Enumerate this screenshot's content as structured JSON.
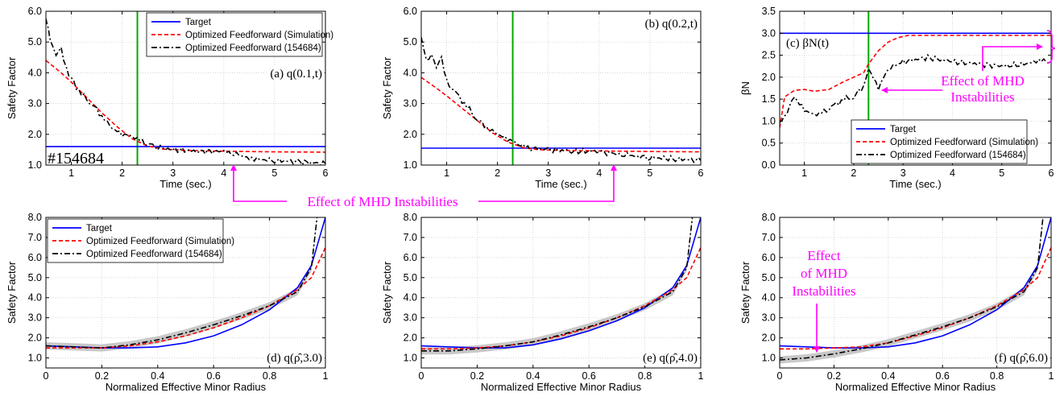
{
  "figure": {
    "shot_label": "#154684",
    "mhd_annotation": "Effect of MHD Instabilities",
    "mhd_annotation_c": [
      "Effect of MHD",
      "Instabilities"
    ],
    "mhd_annotation_f": [
      "Effect",
      "of MHD",
      "Instabilities"
    ],
    "colors": {
      "target": "#0000ff",
      "simulation": "#ff0000",
      "experiment": "#000000",
      "event_line": "#00aa00",
      "annotation": "#ff00ff",
      "uncertainty": "#b0b0b0"
    },
    "legend": {
      "target": "Target",
      "simulation": "Optimized Feedforward (Simulation)",
      "experiment": "Optimized Feedforward (154684)"
    }
  },
  "chart_data": [
    {
      "id": "a",
      "type": "line",
      "title": "(a) q(0.1,t)",
      "xlabel": "Time (sec.)",
      "ylabel": "Safety Factor",
      "xlim": [
        0.5,
        6
      ],
      "ylim": [
        1,
        6
      ],
      "xticks": [
        1,
        2,
        3,
        4,
        5,
        6
      ],
      "yticks": [
        1.0,
        2.0,
        3.0,
        4.0,
        5.0,
        6.0
      ],
      "ytick_labels": [
        "1.0",
        "2.0",
        "3.0",
        "4.0",
        "5.0",
        "6.0"
      ],
      "grid": true,
      "legend": "top-right",
      "vline_x": 2.3,
      "series": [
        {
          "name": "Target",
          "x": [
            0.5,
            6
          ],
          "y": [
            1.6,
            1.6
          ]
        },
        {
          "name": "Optimized Feedforward (Simulation)",
          "x": [
            0.5,
            0.8,
            1.0,
            1.3,
            1.6,
            1.9,
            2.2,
            2.5,
            2.8,
            3.2,
            4.0,
            5.0,
            6.0
          ],
          "y": [
            4.4,
            4.0,
            3.7,
            3.2,
            2.7,
            2.25,
            1.85,
            1.62,
            1.52,
            1.48,
            1.45,
            1.43,
            1.42
          ]
        },
        {
          "name": "Optimized Feedforward (154684)",
          "x": [
            0.5,
            0.55,
            0.6,
            0.7,
            0.8,
            0.9,
            1.0,
            1.2,
            1.4,
            1.6,
            1.8,
            2.0,
            2.2,
            2.4,
            2.6,
            3.0,
            3.5,
            4.0,
            4.3,
            4.6,
            5.0,
            5.5,
            6.0
          ],
          "y": [
            5.8,
            5.4,
            5.0,
            4.6,
            4.8,
            4.1,
            3.8,
            3.3,
            3.0,
            2.6,
            2.2,
            2.0,
            1.95,
            1.75,
            1.6,
            1.5,
            1.45,
            1.45,
            1.3,
            1.2,
            1.15,
            1.1,
            1.05
          ]
        }
      ]
    },
    {
      "id": "b",
      "type": "line",
      "title": "(b) q(0.2,t)",
      "xlabel": "Time (sec.)",
      "ylabel": "Safety Factor",
      "xlim": [
        0.5,
        6
      ],
      "ylim": [
        1,
        6
      ],
      "xticks": [
        1,
        2,
        3,
        4,
        5,
        6
      ],
      "yticks": [
        1.0,
        2.0,
        3.0,
        4.0,
        5.0,
        6.0
      ],
      "ytick_labels": [
        "1.0",
        "2.0",
        "3.0",
        "4.0",
        "5.0",
        "6.0"
      ],
      "grid": true,
      "vline_x": 2.3,
      "series": [
        {
          "name": "Target",
          "x": [
            0.5,
            6
          ],
          "y": [
            1.55,
            1.55
          ]
        },
        {
          "name": "Optimized Feedforward (Simulation)",
          "x": [
            0.5,
            0.8,
            1.0,
            1.3,
            1.6,
            1.9,
            2.2,
            2.5,
            2.8,
            3.2,
            4.0,
            5.0,
            6.0
          ],
          "y": [
            3.85,
            3.5,
            3.25,
            2.85,
            2.45,
            2.05,
            1.75,
            1.57,
            1.5,
            1.48,
            1.46,
            1.44,
            1.43
          ]
        },
        {
          "name": "Optimized Feedforward (154684)",
          "x": [
            0.5,
            0.6,
            0.7,
            0.8,
            0.9,
            1.0,
            1.2,
            1.4,
            1.6,
            1.8,
            2.0,
            2.2,
            2.4,
            2.6,
            3.0,
            3.5,
            4.0,
            4.3,
            4.6,
            5.0,
            5.5,
            6.0
          ],
          "y": [
            5.2,
            4.4,
            4.6,
            4.2,
            4.5,
            3.7,
            3.3,
            2.9,
            2.5,
            2.2,
            2.0,
            1.85,
            1.7,
            1.55,
            1.5,
            1.45,
            1.45,
            1.35,
            1.3,
            1.25,
            1.2,
            1.15
          ]
        }
      ]
    },
    {
      "id": "c",
      "type": "line",
      "title": "(c) βN(t)",
      "xlabel": "Time (sec.)",
      "ylabel": "βN",
      "xlim": [
        0.5,
        6
      ],
      "ylim": [
        0,
        3.5
      ],
      "xticks": [
        1,
        2,
        3,
        4,
        5,
        6
      ],
      "yticks": [
        0,
        0.5,
        1.0,
        1.5,
        2.0,
        2.5,
        3.0,
        3.5
      ],
      "ytick_labels": [
        "0.0",
        "0.5",
        "1.0",
        "1.5",
        "2.0",
        "2.5",
        "3.0",
        "3.5"
      ],
      "grid": true,
      "legend": "bottom-right",
      "vline_x": 2.3,
      "series": [
        {
          "name": "Target",
          "x": [
            0.5,
            6
          ],
          "y": [
            3.0,
            3.0
          ]
        },
        {
          "name": "Optimized Feedforward (Simulation)",
          "x": [
            0.5,
            0.6,
            0.8,
            1.0,
            1.2,
            1.5,
            1.8,
            2.0,
            2.2,
            2.3,
            2.5,
            2.7,
            2.9,
            3.1,
            3.5,
            4.0,
            5.0,
            6.0
          ],
          "y": [
            0.85,
            1.55,
            1.7,
            1.72,
            1.68,
            1.72,
            1.9,
            2.0,
            2.1,
            2.3,
            2.6,
            2.8,
            2.9,
            2.95,
            2.95,
            2.95,
            2.95,
            2.95
          ]
        },
        {
          "name": "Optimized Feedforward (154684)",
          "x": [
            0.5,
            0.6,
            0.8,
            1.0,
            1.2,
            1.4,
            1.6,
            1.8,
            2.0,
            2.2,
            2.3,
            2.5,
            2.7,
            3.0,
            3.5,
            4.0,
            4.5,
            5.0,
            5.5,
            5.8,
            6.0
          ],
          "y": [
            1.0,
            1.1,
            1.55,
            1.25,
            1.15,
            1.2,
            1.35,
            1.5,
            1.55,
            1.8,
            2.2,
            1.75,
            2.2,
            2.35,
            2.45,
            2.35,
            2.3,
            2.25,
            2.3,
            2.4,
            2.3
          ]
        }
      ]
    },
    {
      "id": "d",
      "type": "line",
      "title": "(d) q(ρ̂,3.0)",
      "xlabel": "Normalized Effective Minor Radius",
      "ylabel": "Safety Factor",
      "xlim": [
        0,
        1
      ],
      "ylim": [
        0.5,
        8
      ],
      "xticks": [
        0,
        0.2,
        0.4,
        0.6,
        0.8,
        1
      ],
      "xtick_labels": [
        "0",
        "0.2",
        "0.4",
        "0.6",
        "0.8",
        "1"
      ],
      "yticks": [
        1.0,
        2.0,
        3.0,
        4.0,
        5.0,
        6.0,
        7.0,
        8.0
      ],
      "ytick_labels": [
        "1.0",
        "2.0",
        "3.0",
        "4.0",
        "5.0",
        "6.0",
        "7.0",
        "8.0"
      ],
      "grid": true,
      "legend": "top-left",
      "series": [
        {
          "name": "Target",
          "x": [
            0,
            0.1,
            0.2,
            0.3,
            0.4,
            0.5,
            0.6,
            0.7,
            0.8,
            0.9,
            0.95,
            1.0
          ],
          "y": [
            1.6,
            1.55,
            1.5,
            1.5,
            1.55,
            1.75,
            2.1,
            2.65,
            3.4,
            4.5,
            5.6,
            8.0
          ]
        },
        {
          "name": "Optimized Feedforward (Simulation)",
          "x": [
            0,
            0.1,
            0.2,
            0.3,
            0.4,
            0.5,
            0.6,
            0.7,
            0.8,
            0.9,
            0.95,
            1.0
          ],
          "y": [
            1.5,
            1.5,
            1.5,
            1.6,
            1.8,
            2.1,
            2.5,
            3.0,
            3.6,
            4.4,
            5.0,
            6.5
          ]
        },
        {
          "name": "Optimized Feedforward (154684)",
          "x": [
            0,
            0.1,
            0.2,
            0.3,
            0.4,
            0.5,
            0.6,
            0.7,
            0.8,
            0.9,
            0.95,
            0.97
          ],
          "y": [
            1.6,
            1.55,
            1.5,
            1.65,
            1.9,
            2.25,
            2.65,
            3.1,
            3.6,
            4.3,
            5.5,
            8.0
          ]
        }
      ]
    },
    {
      "id": "e",
      "type": "line",
      "title": "(e) q(ρ̂,4.0)",
      "xlabel": "Normalized Effective Minor Radius",
      "ylabel": "Safety Factor",
      "xlim": [
        0,
        1
      ],
      "ylim": [
        0.5,
        8
      ],
      "xticks": [
        0,
        0.2,
        0.4,
        0.6,
        0.8,
        1
      ],
      "xtick_labels": [
        "0",
        "0.2",
        "0.4",
        "0.6",
        "0.8",
        "1"
      ],
      "yticks": [
        1.0,
        2.0,
        3.0,
        4.0,
        5.0,
        6.0,
        7.0,
        8.0
      ],
      "ytick_labels": [
        "1.0",
        "2.0",
        "3.0",
        "4.0",
        "5.0",
        "6.0",
        "7.0",
        "8.0"
      ],
      "grid": true,
      "series": [
        {
          "name": "Target",
          "x": [
            0,
            0.1,
            0.2,
            0.3,
            0.4,
            0.5,
            0.6,
            0.7,
            0.8,
            0.9,
            0.95,
            1.0
          ],
          "y": [
            1.6,
            1.55,
            1.5,
            1.5,
            1.65,
            1.95,
            2.35,
            2.85,
            3.5,
            4.5,
            5.6,
            8.0
          ]
        },
        {
          "name": "Optimized Feedforward (Simulation)",
          "x": [
            0,
            0.1,
            0.2,
            0.3,
            0.4,
            0.5,
            0.6,
            0.7,
            0.8,
            0.9,
            0.95,
            1.0
          ],
          "y": [
            1.45,
            1.45,
            1.5,
            1.6,
            1.8,
            2.1,
            2.5,
            3.0,
            3.6,
            4.4,
            5.0,
            6.5
          ]
        },
        {
          "name": "Optimized Feedforward (154684)",
          "x": [
            0,
            0.1,
            0.2,
            0.3,
            0.4,
            0.5,
            0.6,
            0.7,
            0.8,
            0.9,
            0.95,
            0.97
          ],
          "y": [
            1.35,
            1.35,
            1.45,
            1.6,
            1.8,
            2.15,
            2.55,
            3.0,
            3.55,
            4.3,
            5.5,
            8.0
          ]
        }
      ]
    },
    {
      "id": "f",
      "type": "line",
      "title": "(f) q(ρ̂,6.0)",
      "xlabel": "Normalized Effective Minor Radius",
      "ylabel": "Safety Factor",
      "xlim": [
        0,
        1
      ],
      "ylim": [
        0.5,
        8
      ],
      "xticks": [
        0,
        0.2,
        0.4,
        0.6,
        0.8,
        1
      ],
      "xtick_labels": [
        "0",
        "0.2",
        "0.4",
        "0.6",
        "0.8",
        "1"
      ],
      "yticks": [
        1.0,
        2.0,
        3.0,
        4.0,
        5.0,
        6.0,
        7.0,
        8.0
      ],
      "ytick_labels": [
        "1.0",
        "2.0",
        "3.0",
        "4.0",
        "5.0",
        "6.0",
        "7.0",
        "8.0"
      ],
      "grid": true,
      "series": [
        {
          "name": "Target",
          "x": [
            0,
            0.1,
            0.2,
            0.3,
            0.4,
            0.5,
            0.6,
            0.7,
            0.8,
            0.9,
            0.95,
            1.0
          ],
          "y": [
            1.6,
            1.55,
            1.5,
            1.5,
            1.55,
            1.75,
            2.1,
            2.65,
            3.4,
            4.5,
            5.6,
            8.0
          ]
        },
        {
          "name": "Optimized Feedforward (Simulation)",
          "x": [
            0,
            0.1,
            0.2,
            0.3,
            0.4,
            0.5,
            0.6,
            0.7,
            0.8,
            0.9,
            0.95,
            1.0
          ],
          "y": [
            1.45,
            1.45,
            1.5,
            1.55,
            1.75,
            2.1,
            2.5,
            3.0,
            3.6,
            4.4,
            5.0,
            6.5
          ]
        },
        {
          "name": "Optimized Feedforward (154684)",
          "x": [
            0,
            0.1,
            0.2,
            0.3,
            0.4,
            0.5,
            0.6,
            0.7,
            0.8,
            0.9,
            0.95,
            0.97
          ],
          "y": [
            0.9,
            1.0,
            1.2,
            1.45,
            1.75,
            2.15,
            2.55,
            3.0,
            3.55,
            4.3,
            5.5,
            8.0
          ]
        }
      ]
    }
  ]
}
